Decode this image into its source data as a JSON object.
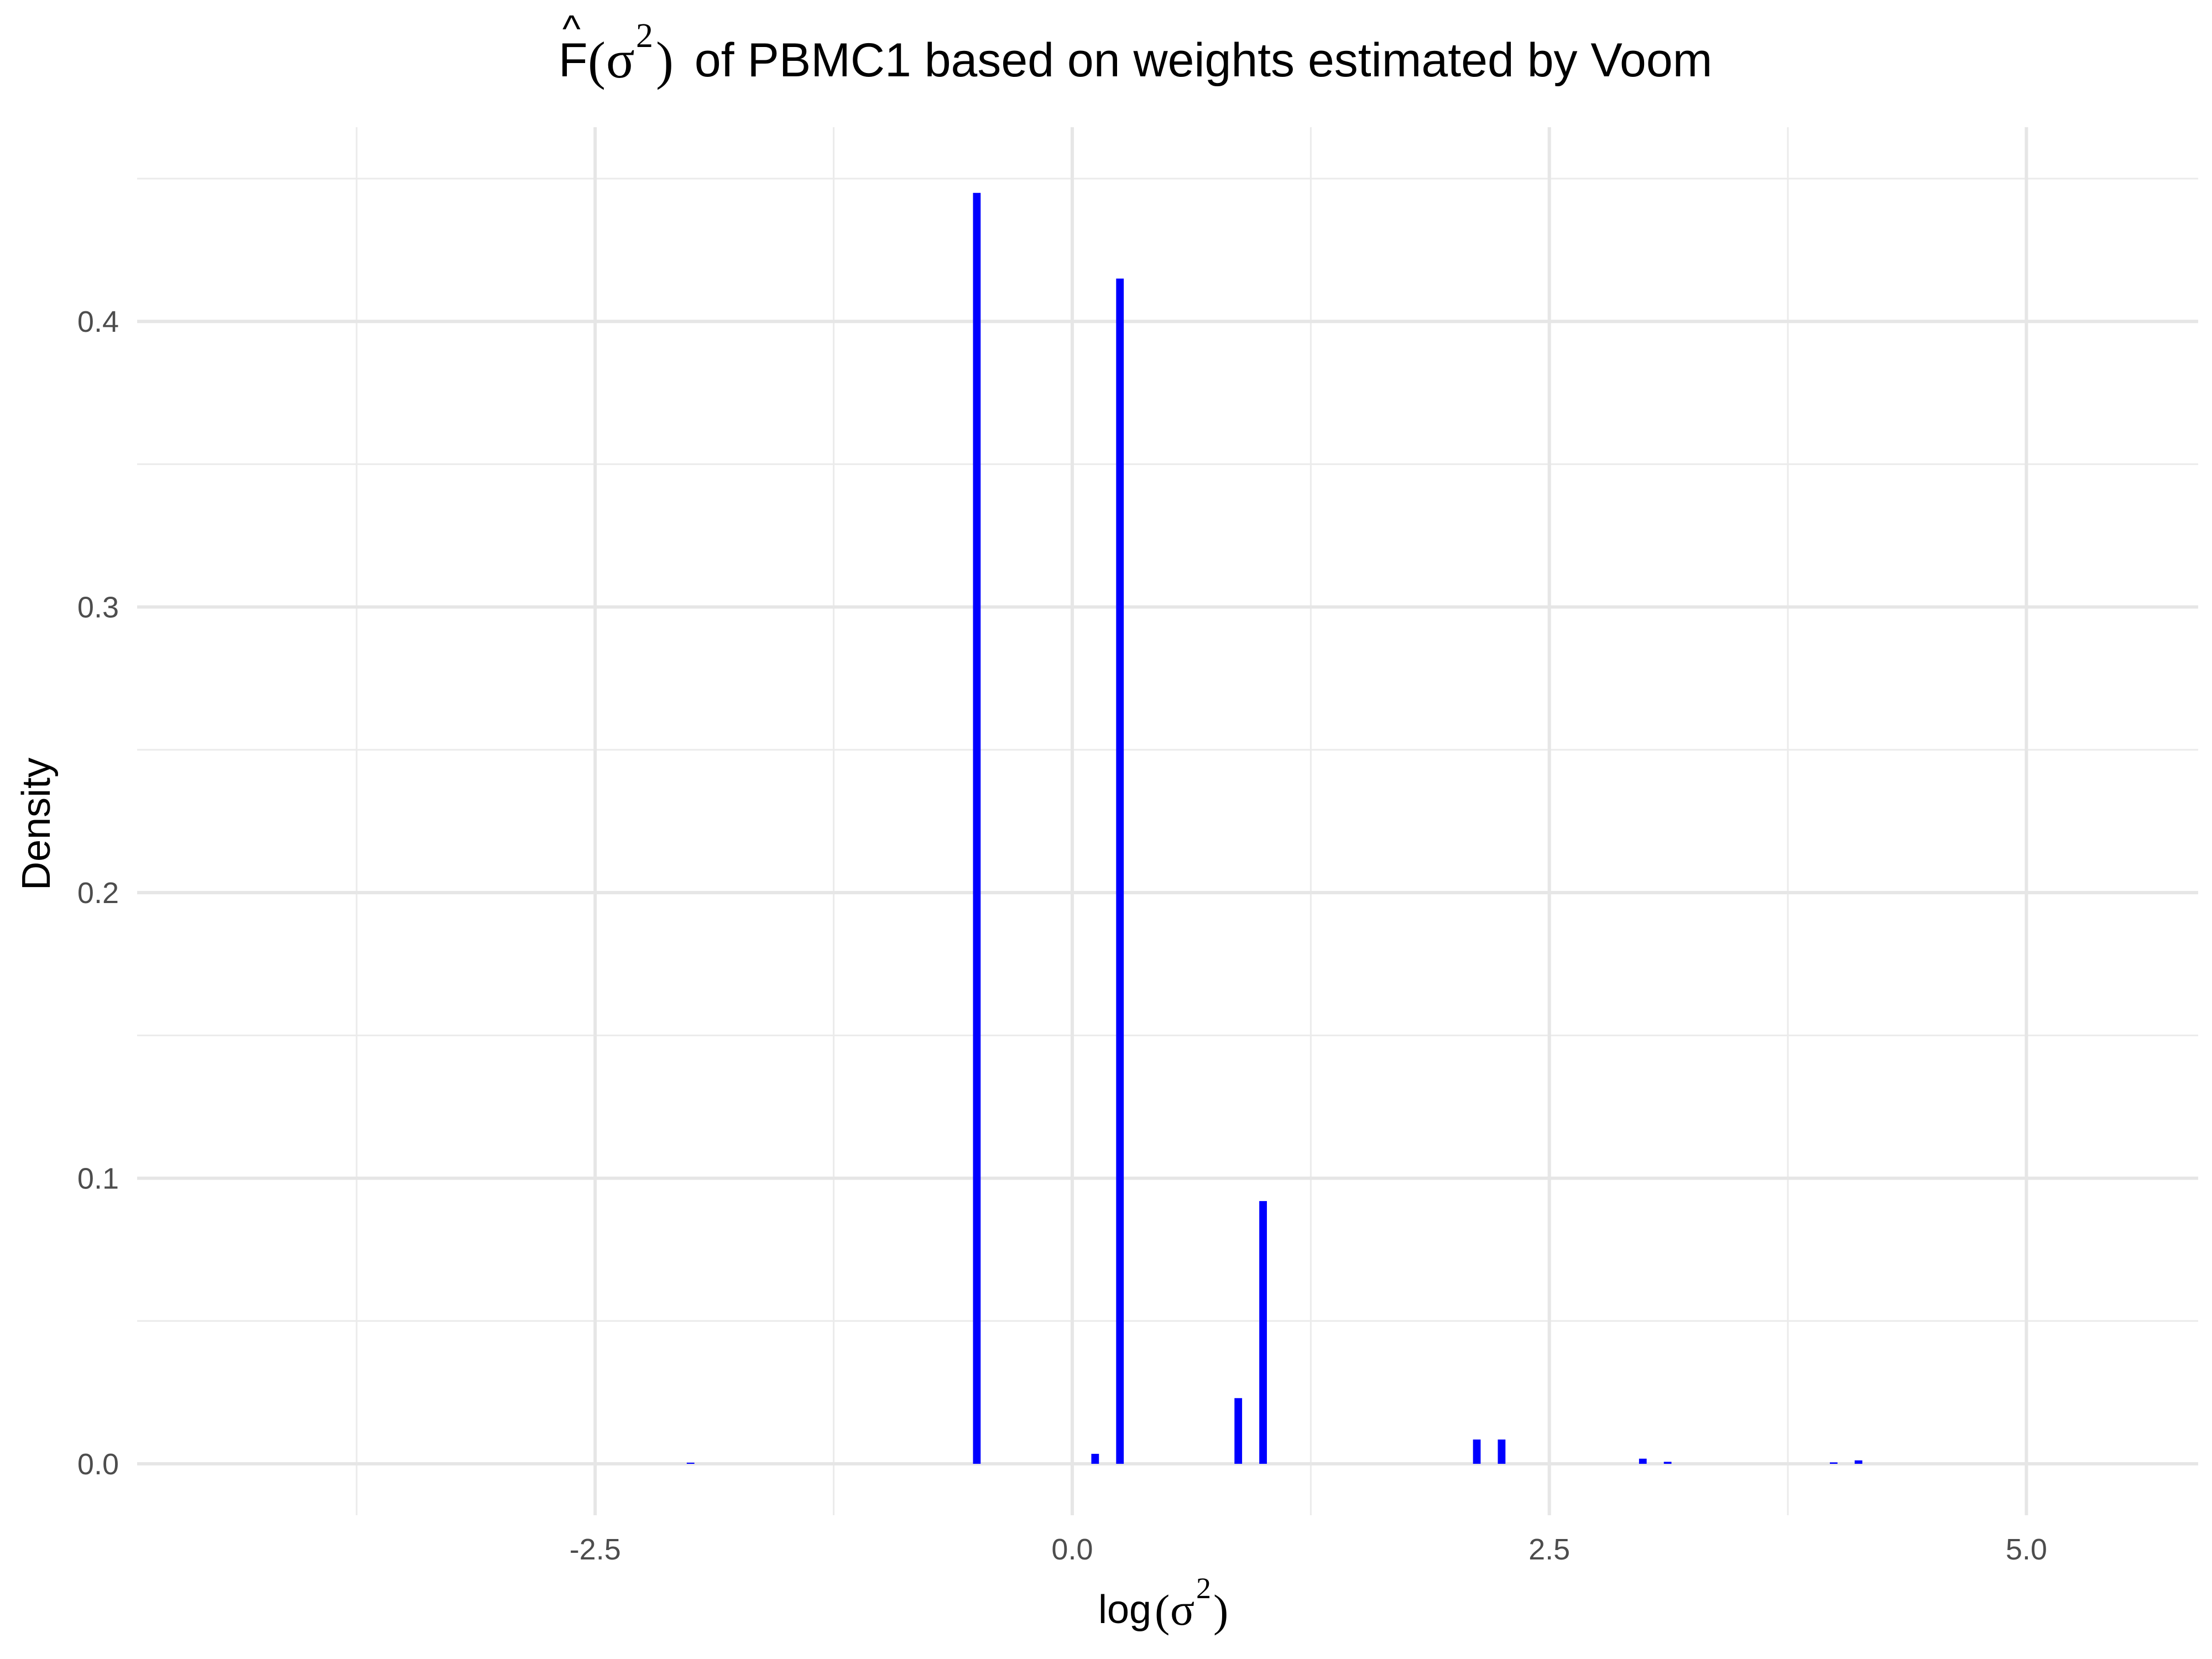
{
  "chart_data": {
    "type": "bar",
    "title": {
      "estimator": "F",
      "hat": "^",
      "paren_open": "(",
      "sigma": "σ",
      "exponent": "2",
      "paren_close": ")",
      "rest": " of PBMC1 based on weights estimated by Voom"
    },
    "xlabel": {
      "prefix": "log",
      "paren_open": "(",
      "sigma": "σ",
      "exponent": "2",
      "paren_close": ")"
    },
    "ylabel": "Density",
    "xlim": [
      -4.9,
      5.9
    ],
    "ylim": [
      -0.018,
      0.468
    ],
    "x_ticks": [
      {
        "value": -2.5,
        "label": "-2.5"
      },
      {
        "value": 0.0,
        "label": "0.0"
      },
      {
        "value": 2.5,
        "label": "2.5"
      },
      {
        "value": 5.0,
        "label": "5.0"
      }
    ],
    "x_minor_ticks": [
      -3.75,
      -1.25,
      1.25,
      3.75
    ],
    "y_ticks": [
      {
        "value": 0.0,
        "label": "0.0"
      },
      {
        "value": 0.1,
        "label": "0.1"
      },
      {
        "value": 0.2,
        "label": "0.2"
      },
      {
        "value": 0.3,
        "label": "0.3"
      },
      {
        "value": 0.4,
        "label": "0.4"
      }
    ],
    "y_minor_ticks": [
      0.05,
      0.15,
      0.25,
      0.35,
      0.45
    ],
    "grid": true,
    "bar_width": 0.04,
    "color": "#0000ff",
    "bars": [
      {
        "x": -2.0,
        "y": 0.0004
      },
      {
        "x": -0.5,
        "y": 0.445
      },
      {
        "x": 0.12,
        "y": 0.0035
      },
      {
        "x": 0.25,
        "y": 0.415
      },
      {
        "x": 0.87,
        "y": 0.023
      },
      {
        "x": 1.0,
        "y": 0.092
      },
      {
        "x": 2.12,
        "y": 0.0085
      },
      {
        "x": 2.25,
        "y": 0.0085
      },
      {
        "x": 2.99,
        "y": 0.0018
      },
      {
        "x": 3.12,
        "y": 0.0007
      },
      {
        "x": 3.99,
        "y": 0.0005
      },
      {
        "x": 4.12,
        "y": 0.0012
      }
    ]
  }
}
